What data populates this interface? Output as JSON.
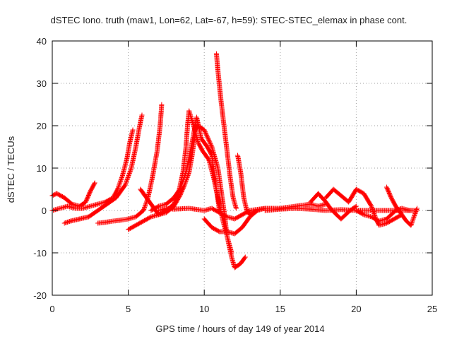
{
  "chart_data": {
    "type": "scatter",
    "title": "dSTEC Iono. truth (maw1, Lon=62, Lat=-67, h=59): STEC-STEC_elemax in phase cont.",
    "xlabel": "GPS time / hours of day 149 of year 2014",
    "ylabel": "dSTEC  / TECUs",
    "xlim": [
      0,
      25
    ],
    "ylim": [
      -20,
      40
    ],
    "xticks": [
      0,
      5,
      10,
      15,
      20,
      25
    ],
    "yticks": [
      -20,
      -10,
      0,
      10,
      20,
      30,
      40
    ],
    "grid": true,
    "marker": "+",
    "color": "#ff0000",
    "series": [
      {
        "points": [
          [
            0,
            3.5
          ],
          [
            0.3,
            4
          ],
          [
            0.8,
            3
          ],
          [
            1.3,
            1.5
          ],
          [
            1.8,
            1
          ],
          [
            2.2,
            2
          ],
          [
            2.5,
            4.5
          ],
          [
            2.8,
            6.5
          ]
        ]
      },
      {
        "points": [
          [
            0,
            0
          ],
          [
            0.5,
            0.5
          ],
          [
            1,
            1
          ],
          [
            1.5,
            0.5
          ],
          [
            2,
            0.5
          ],
          [
            2.5,
            1
          ],
          [
            3,
            1.5
          ],
          [
            3.5,
            2
          ],
          [
            4,
            3
          ],
          [
            4.3,
            5
          ],
          [
            4.6,
            8
          ],
          [
            4.9,
            12
          ],
          [
            5.1,
            16
          ],
          [
            5.3,
            19
          ]
        ]
      },
      {
        "points": [
          [
            0.8,
            -3
          ],
          [
            1.2,
            -2.5
          ],
          [
            1.8,
            -2
          ],
          [
            2.4,
            -1.5
          ],
          [
            3,
            0
          ],
          [
            3.6,
            1.5
          ],
          [
            4.2,
            3
          ],
          [
            4.8,
            6
          ],
          [
            5.2,
            10
          ],
          [
            5.5,
            15
          ],
          [
            5.7,
            19
          ],
          [
            5.9,
            22.5
          ]
        ]
      },
      {
        "points": [
          [
            3,
            -3
          ],
          [
            3.5,
            -2.8
          ],
          [
            4,
            -2.5
          ],
          [
            4.5,
            -2.3
          ],
          [
            5,
            -2
          ],
          [
            5.5,
            -1.5
          ],
          [
            6,
            0
          ],
          [
            6.3,
            3
          ],
          [
            6.6,
            8
          ],
          [
            6.9,
            14
          ],
          [
            7.1,
            20
          ],
          [
            7.2,
            25
          ]
        ]
      },
      {
        "points": [
          [
            5,
            -4.5
          ],
          [
            5.5,
            -3.5
          ],
          [
            6,
            -2.5
          ],
          [
            6.5,
            -1.5
          ],
          [
            7,
            -1
          ],
          [
            7.5,
            0
          ],
          [
            8,
            1.5
          ],
          [
            8.3,
            4
          ],
          [
            8.6,
            9
          ],
          [
            8.8,
            15
          ],
          [
            8.9,
            20
          ],
          [
            9,
            23.5
          ],
          [
            9.3,
            20
          ],
          [
            9.6,
            16
          ],
          [
            9.9,
            14
          ],
          [
            10.3,
            12
          ],
          [
            10.6,
            8
          ],
          [
            10.9,
            3
          ],
          [
            11.2,
            -2
          ],
          [
            11.5,
            -6
          ],
          [
            11.8,
            -10
          ]
        ]
      },
      {
        "points": [
          [
            5.8,
            5
          ],
          [
            6.2,
            3
          ],
          [
            6.6,
            1
          ],
          [
            7,
            -1
          ],
          [
            7.5,
            -0.5
          ],
          [
            8,
            1
          ],
          [
            8.4,
            3.5
          ],
          [
            8.7,
            6
          ],
          [
            9,
            9
          ],
          [
            9.2,
            13
          ],
          [
            9.4,
            18
          ],
          [
            9.6,
            20
          ],
          [
            10,
            19
          ],
          [
            10.5,
            15
          ],
          [
            10.9,
            10
          ],
          [
            11.1,
            5
          ],
          [
            11.3,
            0
          ],
          [
            11.5,
            -6
          ],
          [
            11.8,
            -11
          ],
          [
            12,
            -13.5
          ],
          [
            12.4,
            -12.5
          ],
          [
            12.7,
            -11
          ]
        ]
      },
      {
        "points": [
          [
            6.5,
            0
          ],
          [
            7,
            1
          ],
          [
            7.5,
            1.5
          ],
          [
            8,
            3
          ],
          [
            8.4,
            5
          ],
          [
            8.8,
            9
          ],
          [
            9.2,
            16
          ],
          [
            9.5,
            22
          ],
          [
            9.8,
            17
          ],
          [
            10.2,
            15
          ],
          [
            10.5,
            13
          ],
          [
            10.8,
            5
          ],
          [
            11,
            0
          ]
        ]
      },
      {
        "points": [
          [
            10.8,
            37
          ],
          [
            10.9,
            33
          ],
          [
            11.1,
            26
          ],
          [
            11.3,
            20
          ],
          [
            11.5,
            14
          ],
          [
            11.7,
            8
          ],
          [
            11.9,
            3
          ],
          [
            12.1,
            0.5
          ]
        ]
      },
      {
        "points": [
          [
            12.2,
            13
          ],
          [
            12.4,
            9
          ],
          [
            12.6,
            3
          ],
          [
            12.8,
            0
          ],
          [
            13,
            -1
          ],
          [
            13.3,
            -0.5
          ]
        ]
      },
      {
        "points": [
          [
            7,
            0
          ],
          [
            7.5,
            0.5
          ],
          [
            8,
            0.3
          ],
          [
            9,
            0.5
          ],
          [
            10,
            0
          ],
          [
            10.5,
            0.5
          ],
          [
            11,
            -0.5
          ],
          [
            11.5,
            -1.5
          ],
          [
            12,
            -2
          ],
          [
            12.5,
            -1
          ],
          [
            13,
            0
          ],
          [
            14,
            0.5
          ],
          [
            15,
            0.5
          ],
          [
            16,
            1
          ],
          [
            17,
            1.5
          ],
          [
            17.5,
            1
          ],
          [
            18,
            1.5
          ]
        ]
      },
      {
        "points": [
          [
            10,
            -2
          ],
          [
            10.5,
            -4
          ],
          [
            11,
            -5
          ],
          [
            11.5,
            -5
          ],
          [
            12,
            -5.5
          ],
          [
            12.5,
            -4
          ],
          [
            13,
            -1.5
          ],
          [
            13.5,
            0
          ],
          [
            14,
            0.5
          ]
        ]
      },
      {
        "points": [
          [
            17,
            2
          ],
          [
            17.5,
            4
          ],
          [
            18,
            2
          ],
          [
            18.3,
            0.5
          ],
          [
            18.7,
            -1
          ],
          [
            19,
            -2
          ],
          [
            19.3,
            -1
          ],
          [
            19.6,
            0
          ],
          [
            20,
            1
          ]
        ]
      },
      {
        "points": [
          [
            18,
            3
          ],
          [
            18.5,
            5
          ],
          [
            19,
            3.5
          ],
          [
            19.5,
            2
          ],
          [
            20,
            5
          ],
          [
            20.5,
            4
          ],
          [
            21,
            1
          ],
          [
            21.3,
            -2
          ],
          [
            21.5,
            -3.5
          ],
          [
            22,
            -3
          ],
          [
            22.5,
            -2
          ],
          [
            23,
            -1
          ]
        ]
      },
      {
        "points": [
          [
            20,
            0
          ],
          [
            20.5,
            -1
          ],
          [
            21,
            -1.5
          ],
          [
            21.5,
            -2.5
          ],
          [
            22,
            -2
          ],
          [
            22.3,
            -1
          ],
          [
            22.6,
            0
          ],
          [
            23,
            0.5
          ],
          [
            23.5,
            0
          ]
        ]
      },
      {
        "points": [
          [
            22,
            5.5
          ],
          [
            22.3,
            3
          ],
          [
            22.6,
            1
          ],
          [
            23,
            -1
          ],
          [
            23.3,
            -2.5
          ],
          [
            23.6,
            -3.5
          ],
          [
            23.8,
            -1.5
          ],
          [
            24,
            0.5
          ]
        ]
      },
      {
        "points": [
          [
            14,
            0
          ],
          [
            15,
            0.3
          ],
          [
            16,
            0.5
          ],
          [
            17,
            0.3
          ],
          [
            18,
            0
          ],
          [
            19,
            0.2
          ],
          [
            20,
            0
          ],
          [
            21,
            0
          ],
          [
            22,
            0
          ],
          [
            23,
            0
          ],
          [
            24,
            0
          ]
        ]
      }
    ]
  }
}
